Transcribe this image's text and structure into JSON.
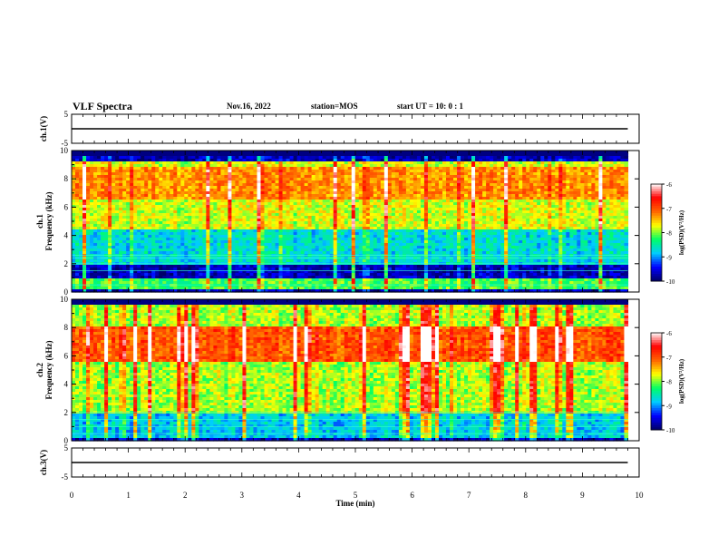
{
  "header": {
    "title": "VLF Spectra",
    "date": "Nov.16, 2022",
    "station": "station=MOS",
    "start": "start  UT =   10: 0  : 1"
  },
  "colors": {
    "spectrum_scale": [
      "#000066",
      "#0000ff",
      "#00ccff",
      "#00ff66",
      "#ffff00",
      "#ff6600",
      "#ff0000",
      "#ffffff"
    ],
    "waveform": "#000000"
  },
  "chart_data": [
    {
      "type": "line",
      "name": "ch1-waveform",
      "ylabel": "ch.1(V)",
      "ylim": [
        -5,
        5
      ],
      "yticks": [
        5,
        -5
      ],
      "xlim": [
        0,
        10
      ],
      "value_level": 0
    },
    {
      "type": "heatmap",
      "name": "ch1-spectrogram",
      "ylabel_line1": "ch.1",
      "ylabel_line2": "Frequency (kHz)",
      "ylim": [
        0,
        10
      ],
      "yticks": [
        0,
        2,
        4,
        6,
        8,
        10
      ],
      "xlim": [
        0,
        10
      ],
      "data_extent_min": 9.8,
      "bands": [
        {
          "from_khz": 4.5,
          "to_khz": 9.3,
          "level": -7.8
        },
        {
          "from_khz": 6.5,
          "to_khz": 8.8,
          "level": -7.3
        },
        {
          "from_khz": 2.0,
          "to_khz": 4.5,
          "level": -8.7
        },
        {
          "from_khz": 0.2,
          "to_khz": 1.0,
          "level": -8.2
        }
      ],
      "lines_khz": [
        0.5,
        1.5,
        2.0,
        2.4,
        2.6
      ],
      "colorbar": {
        "label": "log(PSD)(V²/Hz)",
        "min": -10,
        "max": -6,
        "ticks": [
          -6,
          -7,
          -8,
          -9,
          -10
        ]
      }
    },
    {
      "type": "heatmap",
      "name": "ch2-spectrogram",
      "ylabel_line1": "ch.2",
      "ylabel_line2": "Frequency (kHz)",
      "ylim": [
        0,
        10
      ],
      "yticks": [
        0,
        2,
        4,
        6,
        8,
        10
      ],
      "xlim": [
        0,
        10
      ],
      "data_extent_min": 9.8,
      "bands": [
        {
          "from_khz": 2.0,
          "to_khz": 9.8,
          "level": -7.9
        },
        {
          "from_khz": 5.5,
          "to_khz": 8.0,
          "level": -7.0
        },
        {
          "from_khz": 0.2,
          "to_khz": 2.0,
          "level": -8.8
        }
      ],
      "lines_khz": [
        0.5,
        1.0,
        1.5,
        2.0
      ],
      "colorbar": {
        "label": "log(PSD)(V²/Hz)",
        "min": -10,
        "max": -6,
        "ticks": [
          -6,
          -7,
          -8,
          -9,
          -10
        ]
      }
    },
    {
      "type": "line",
      "name": "ch3-waveform",
      "ylabel": "ch.3(V)",
      "ylim": [
        -5,
        5
      ],
      "yticks": [
        5,
        -5
      ],
      "xlim": [
        0,
        10
      ],
      "value_level": 0
    }
  ],
  "x_axis": {
    "label": "Time  (min)",
    "ticks": [
      0,
      1,
      2,
      3,
      4,
      5,
      6,
      7,
      8,
      9,
      10
    ]
  }
}
